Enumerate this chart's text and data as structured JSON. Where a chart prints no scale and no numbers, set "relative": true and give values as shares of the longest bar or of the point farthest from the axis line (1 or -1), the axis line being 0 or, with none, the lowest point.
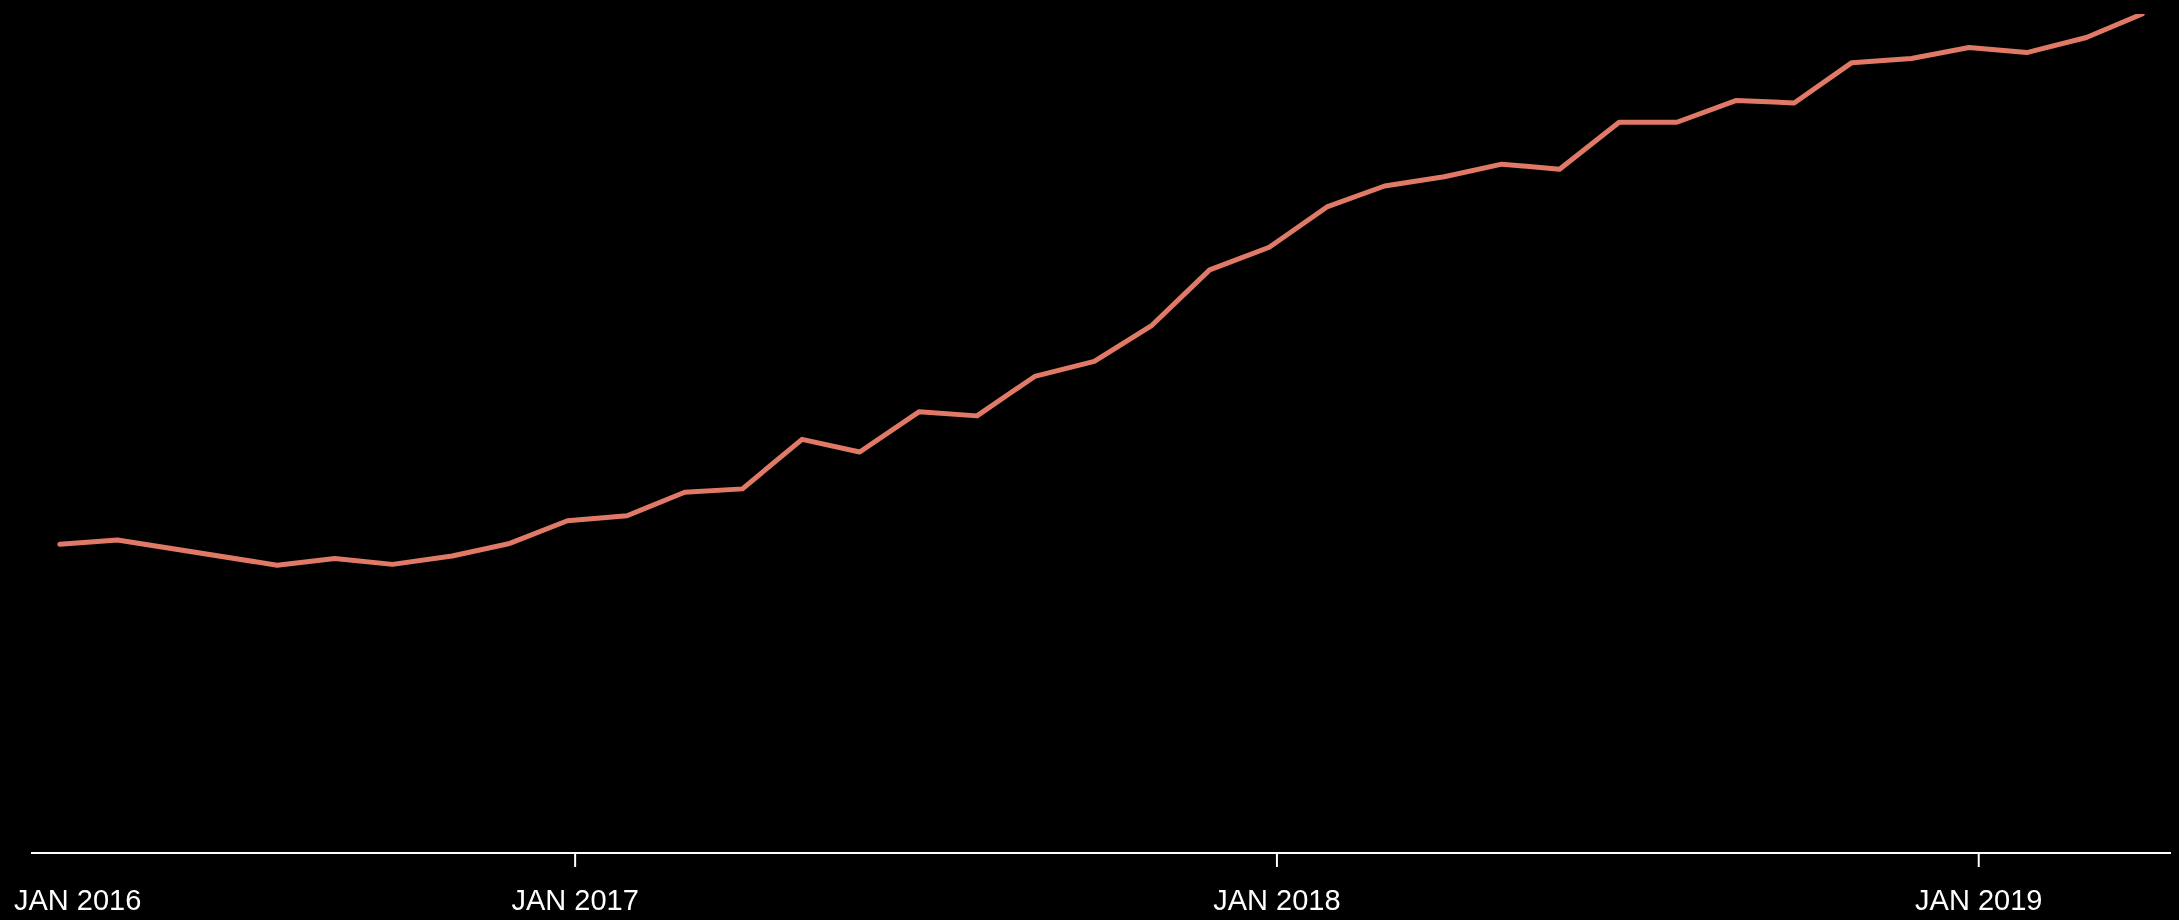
{
  "chart_data": {
    "type": "line",
    "relative": true,
    "x": [
      "2016-04-08",
      "2016-05-08",
      "2016-07-30",
      "2016-08-29",
      "2016-09-28",
      "2016-10-29",
      "2016-11-28",
      "2016-12-28",
      "2017-01-28",
      "2017-02-27",
      "2017-03-29",
      "2017-04-29",
      "2017-05-29",
      "2017-06-29",
      "2017-07-29",
      "2017-08-28",
      "2017-09-28",
      "2017-10-28",
      "2017-11-27",
      "2017-12-28",
      "2018-01-27",
      "2018-02-26",
      "2018-03-29",
      "2018-04-28",
      "2018-05-28",
      "2018-06-28",
      "2018-07-28",
      "2018-08-28",
      "2018-09-27",
      "2018-10-27",
      "2018-11-27",
      "2018-12-27",
      "2019-01-26",
      "2019-02-26",
      "2019-03-27"
    ],
    "series": [
      {
        "color": "#e07a66",
        "values": [
          0.368,
          0.373,
          0.343,
          0.351,
          0.344,
          0.354,
          0.369,
          0.396,
          0.402,
          0.43,
          0.434,
          0.493,
          0.478,
          0.526,
          0.521,
          0.568,
          0.586,
          0.629,
          0.695,
          0.722,
          0.77,
          0.795,
          0.806,
          0.821,
          0.815,
          0.871,
          0.871,
          0.897,
          0.894,
          0.942,
          0.947,
          0.96,
          0.954,
          0.972,
          1
        ]
      }
    ],
    "xlim": [
      "2016-03-24",
      "2019-04-11"
    ],
    "xticks": [
      {
        "value": "2017-01-01",
        "label": "JAN 2017"
      },
      {
        "value": "2018-01-01",
        "label": "JAN 2018"
      },
      {
        "value": "2019-01-01",
        "label": "JAN 2019"
      }
    ],
    "annotations": [
      "JAN 2016"
    ],
    "grid": false,
    "legend": false,
    "marker": "none",
    "line_style": "solid"
  }
}
